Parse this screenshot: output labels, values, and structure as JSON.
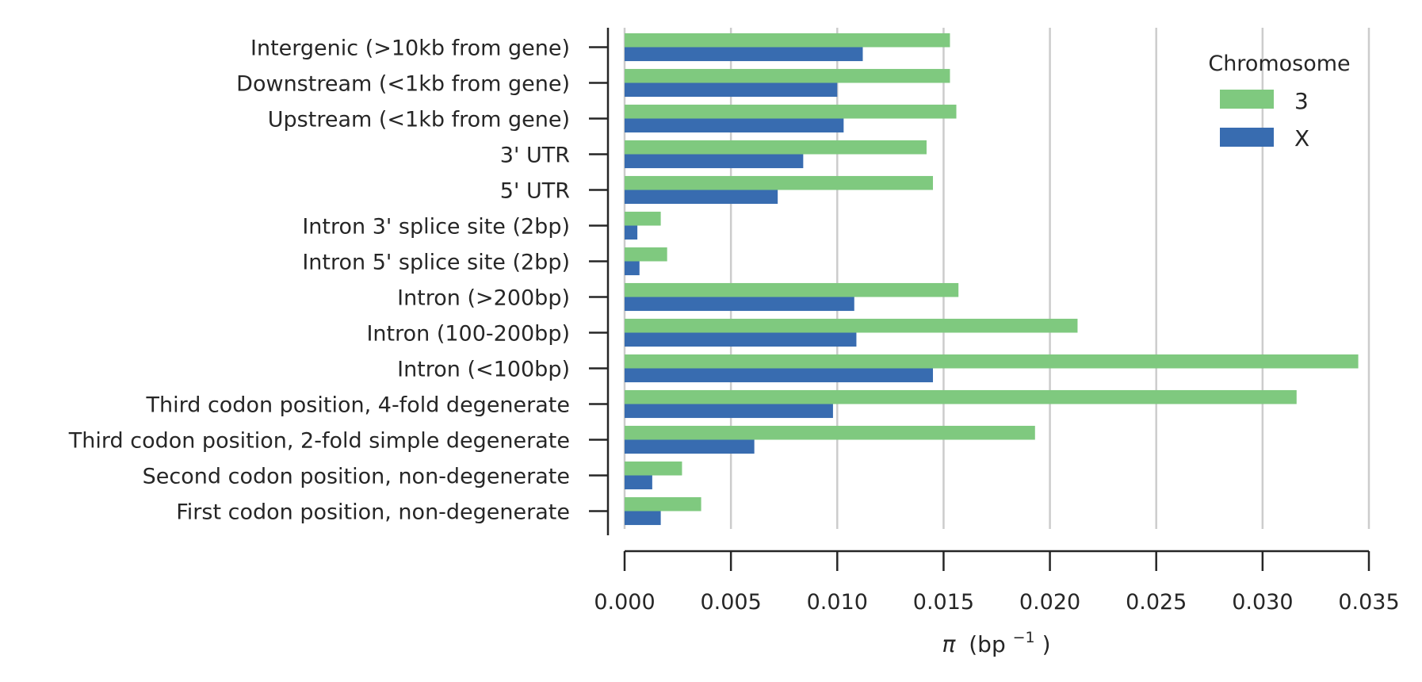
{
  "chart_data": {
    "type": "bar",
    "orientation": "horizontal",
    "categories": [
      "Intergenic (>10kb from gene)",
      "Downstream (<1kb from gene)",
      "Upstream (<1kb from gene)",
      "3' UTR",
      "5' UTR",
      "Intron 3' splice site (2bp)",
      "Intron 5' splice site (2bp)",
      "Intron (>200bp)",
      "Intron (100-200bp)",
      "Intron (<100bp)",
      "Third codon position, 4-fold degenerate",
      "Third codon position, 2-fold simple degenerate",
      "Second codon position, non-degenerate",
      "First codon position, non-degenerate"
    ],
    "series": [
      {
        "name": "3",
        "color": "#7fc97f",
        "values": [
          0.0153,
          0.0153,
          0.0156,
          0.0142,
          0.0145,
          0.0017,
          0.002,
          0.0157,
          0.0213,
          0.0345,
          0.0316,
          0.0193,
          0.0027,
          0.0036
        ]
      },
      {
        "name": "X",
        "color": "#386cb0",
        "values": [
          0.0112,
          0.01,
          0.0103,
          0.0084,
          0.0072,
          0.0006,
          0.0007,
          0.0108,
          0.0109,
          0.0145,
          0.0098,
          0.0061,
          0.0013,
          0.0017
        ]
      }
    ],
    "xlim": [
      0,
      0.035
    ],
    "x_ticks": [
      0,
      0.005,
      0.01,
      0.015,
      0.02,
      0.025,
      0.03,
      0.035
    ],
    "x_tick_labels": [
      "0.000",
      "0.005",
      "0.010",
      "0.015",
      "0.020",
      "0.025",
      "0.030",
      "0.035"
    ],
    "xlabel_prefix": "π",
    "xlabel_unit": "(bp",
    "xlabel_exponent": "−1",
    "xlabel_close": ")",
    "ylabel": "",
    "title": "",
    "legend_title": "Chromosome",
    "legend_position": "top-right",
    "grid": "vertical"
  }
}
